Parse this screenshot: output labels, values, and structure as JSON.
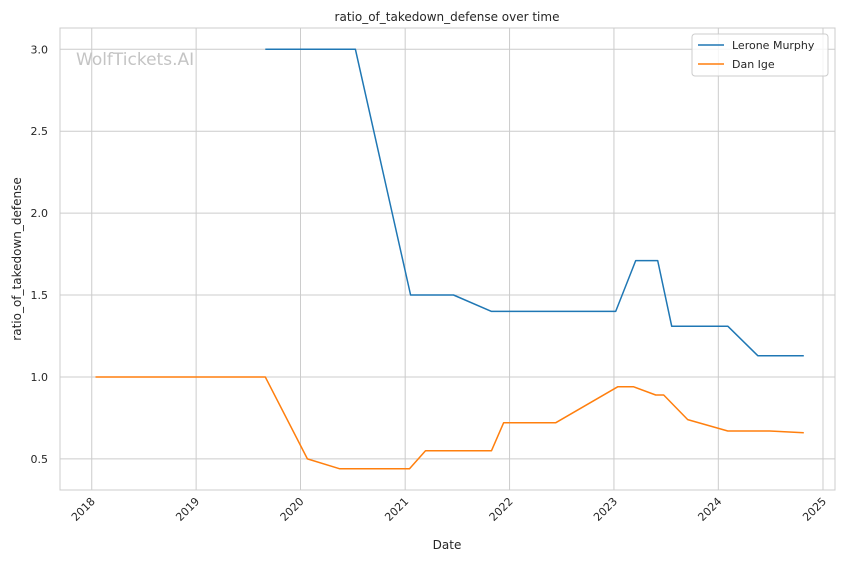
{
  "chart_data": {
    "type": "line",
    "title": "ratio_of_takedown_defense over time",
    "xlabel": "Date",
    "ylabel": "ratio_of_takedown_defense",
    "watermark": "WolfTickets.AI",
    "x_ticks": [
      "2018",
      "2019",
      "2020",
      "2021",
      "2022",
      "2023",
      "2024",
      "2025"
    ],
    "y_ticks": [
      "0.5",
      "1.0",
      "1.5",
      "2.0",
      "2.5",
      "3.0"
    ],
    "xlim": [
      "2017-09-12",
      "2025-02-12"
    ],
    "ylim": [
      0.31,
      3.13
    ],
    "grid": true,
    "legend_position": "top-right",
    "series": [
      {
        "name": "Lerone Murphy",
        "color": "#1f77b4",
        "points": [
          [
            "2019-08-31",
            3.0
          ],
          [
            "2020-07-11",
            3.0
          ],
          [
            "2021-01-20",
            1.5
          ],
          [
            "2021-06-19",
            1.5
          ],
          [
            "2021-10-30",
            1.4
          ],
          [
            "2023-01-07",
            1.4
          ],
          [
            "2023-03-18",
            1.71
          ],
          [
            "2023-06-03",
            1.71
          ],
          [
            "2023-07-22",
            1.31
          ],
          [
            "2024-02-03",
            1.31
          ],
          [
            "2024-05-18",
            1.13
          ],
          [
            "2024-10-26",
            1.13
          ]
        ]
      },
      {
        "name": "Dan Ige",
        "color": "#ff7f0e",
        "points": [
          [
            "2018-01-14",
            1.0
          ],
          [
            "2019-08-31",
            1.0
          ],
          [
            "2020-01-25",
            0.5
          ],
          [
            "2020-05-16",
            0.44
          ],
          [
            "2021-01-16",
            0.44
          ],
          [
            "2021-03-13",
            0.55
          ],
          [
            "2021-10-30",
            0.55
          ],
          [
            "2021-12-11",
            0.72
          ],
          [
            "2022-06-11",
            0.72
          ],
          [
            "2023-01-14",
            0.94
          ],
          [
            "2023-03-11",
            0.94
          ],
          [
            "2023-05-27",
            0.89
          ],
          [
            "2023-06-24",
            0.89
          ],
          [
            "2023-09-16",
            0.74
          ],
          [
            "2024-02-03",
            0.67
          ],
          [
            "2024-06-29",
            0.67
          ],
          [
            "2024-10-26",
            0.66
          ]
        ]
      }
    ]
  }
}
